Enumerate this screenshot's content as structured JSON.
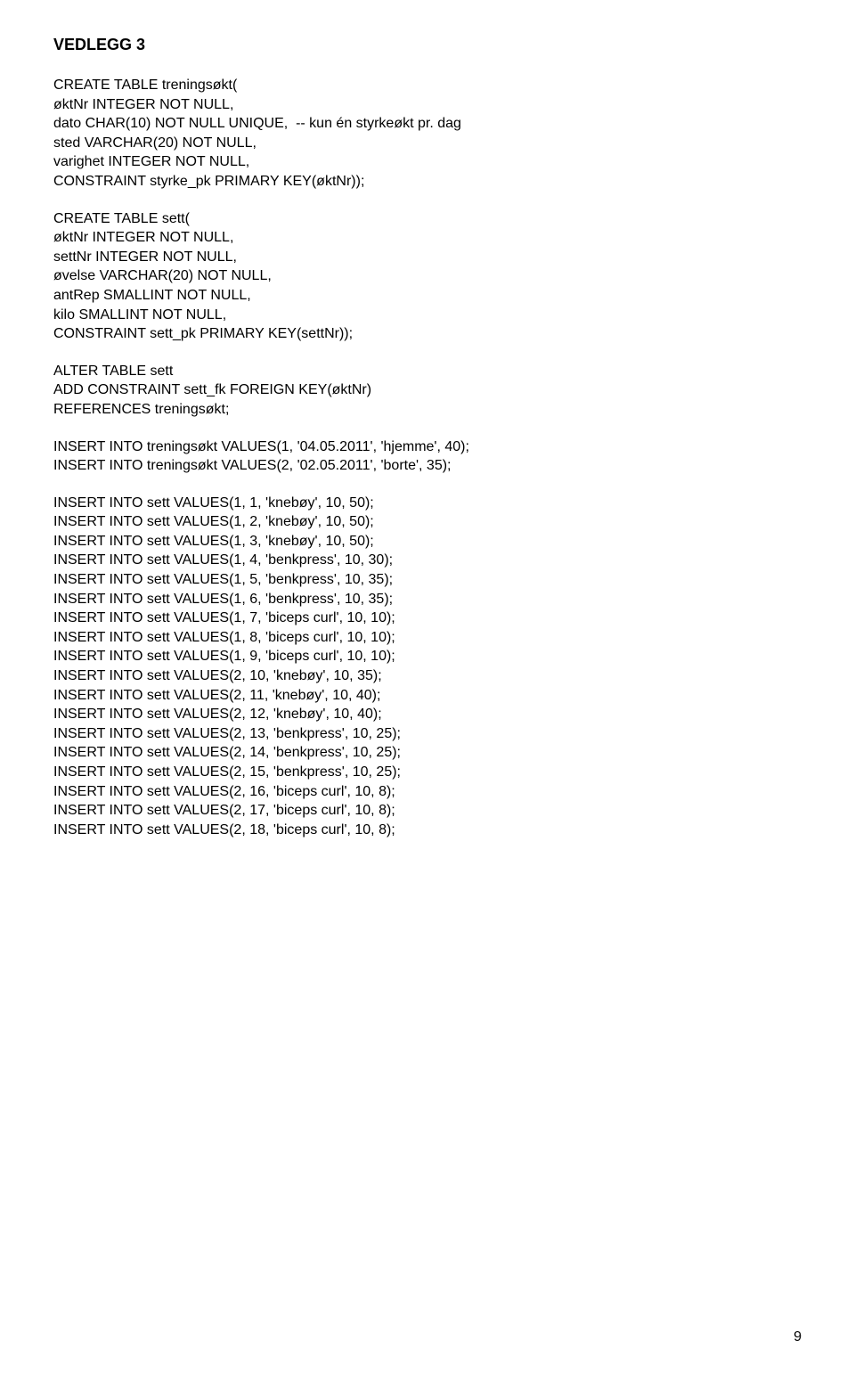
{
  "heading": "VEDLEGG 3",
  "block1": "CREATE TABLE treningsøkt(\nøktNr INTEGER NOT NULL,\ndato CHAR(10) NOT NULL UNIQUE,  -- kun én styrkeøkt pr. dag\nsted VARCHAR(20) NOT NULL,\nvarighet INTEGER NOT NULL,\nCONSTRAINT styrke_pk PRIMARY KEY(øktNr));",
  "block2": "CREATE TABLE sett(\nøktNr INTEGER NOT NULL,\nsettNr INTEGER NOT NULL,\nøvelse VARCHAR(20) NOT NULL,\nantRep SMALLINT NOT NULL,\nkilo SMALLINT NOT NULL,\nCONSTRAINT sett_pk PRIMARY KEY(settNr));",
  "block3": "ALTER TABLE sett\nADD CONSTRAINT sett_fk FOREIGN KEY(øktNr)\nREFERENCES treningsøkt;",
  "block4": "INSERT INTO treningsøkt VALUES(1, '04.05.2011', 'hjemme', 40);\nINSERT INTO treningsøkt VALUES(2, '02.05.2011', 'borte', 35);",
  "block5": "INSERT INTO sett VALUES(1, 1, 'knebøy', 10, 50);\nINSERT INTO sett VALUES(1, 2, 'knebøy', 10, 50);\nINSERT INTO sett VALUES(1, 3, 'knebøy', 10, 50);\nINSERT INTO sett VALUES(1, 4, 'benkpress', 10, 30);\nINSERT INTO sett VALUES(1, 5, 'benkpress', 10, 35);\nINSERT INTO sett VALUES(1, 6, 'benkpress', 10, 35);\nINSERT INTO sett VALUES(1, 7, 'biceps curl', 10, 10);\nINSERT INTO sett VALUES(1, 8, 'biceps curl', 10, 10);\nINSERT INTO sett VALUES(1, 9, 'biceps curl', 10, 10);\nINSERT INTO sett VALUES(2, 10, 'knebøy', 10, 35);\nINSERT INTO sett VALUES(2, 11, 'knebøy', 10, 40);\nINSERT INTO sett VALUES(2, 12, 'knebøy', 10, 40);\nINSERT INTO sett VALUES(2, 13, 'benkpress', 10, 25);\nINSERT INTO sett VALUES(2, 14, 'benkpress', 10, 25);\nINSERT INTO sett VALUES(2, 15, 'benkpress', 10, 25);\nINSERT INTO sett VALUES(2, 16, 'biceps curl', 10, 8);\nINSERT INTO sett VALUES(2, 17, 'biceps curl', 10, 8);\nINSERT INTO sett VALUES(2, 18, 'biceps curl', 10, 8);",
  "pageNumber": "9"
}
